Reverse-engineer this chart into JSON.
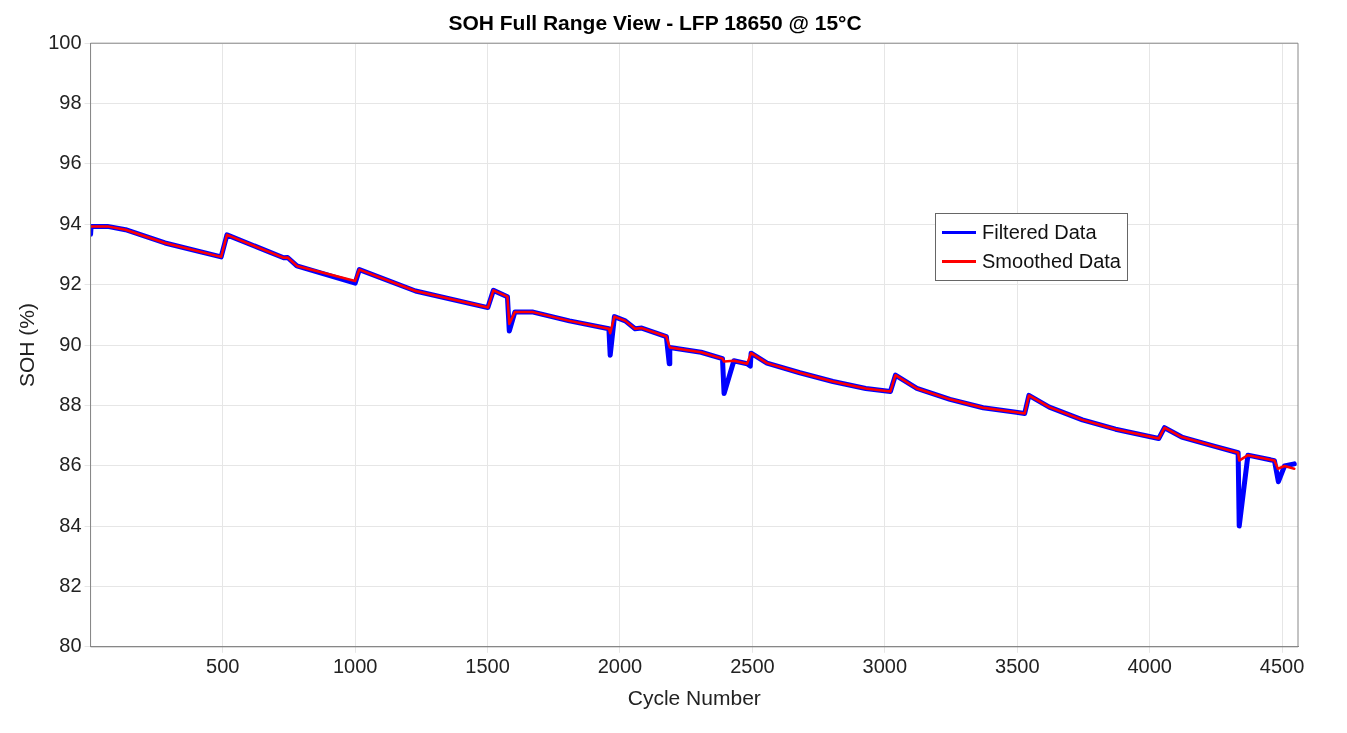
{
  "chart_data": {
    "type": "line",
    "title": "SOH Full Range View - LFP 18650 @ 15°C",
    "xlabel": "Cycle Number",
    "ylabel": "SOH (%)",
    "xlim": [
      1,
      4560
    ],
    "xticks": [
      500,
      1000,
      1500,
      2000,
      2500,
      3000,
      3500,
      4000,
      4500
    ],
    "ylim": [
      80,
      100
    ],
    "yticks": [
      80,
      82,
      84,
      86,
      88,
      90,
      92,
      94,
      96,
      98,
      100
    ],
    "grid": true,
    "legend": "top right",
    "marker": "none",
    "line_style": "solid",
    "series": [
      {
        "name": "Filtered Data",
        "color": "#0000ff",
        "x": [
          1,
          3,
          65,
          133,
          282,
          494,
          516,
          730,
          745,
          780,
          1000,
          1016,
          1228,
          1501,
          1522,
          1575,
          1582,
          1603,
          1672,
          1809,
          1958,
          1963,
          1979,
          2020,
          2057,
          2082,
          2175,
          2186,
          2188,
          2306,
          2387,
          2393,
          2430,
          2480,
          2492,
          2495,
          2555,
          2679,
          2804,
          2928,
          3021,
          3040,
          3121,
          3246,
          3371,
          3528,
          3544,
          3621,
          3746,
          3871,
          4034,
          4056,
          4121,
          4246,
          4334,
          4338,
          4371,
          4471,
          4486,
          4509,
          4546
        ],
        "values": [
          93.67,
          93.93,
          93.93,
          93.82,
          93.38,
          92.92,
          93.65,
          92.89,
          92.9,
          92.62,
          92.05,
          92.5,
          91.79,
          91.24,
          91.81,
          91.6,
          90.46,
          91.09,
          91.09,
          90.8,
          90.54,
          89.66,
          90.94,
          90.8,
          90.54,
          90.56,
          90.28,
          89.38,
          89.92,
          89.76,
          89.55,
          88.39,
          89.48,
          89.38,
          89.3,
          89.73,
          89.4,
          89.08,
          88.79,
          88.56,
          88.46,
          89.0,
          88.56,
          88.2,
          87.92,
          87.73,
          88.33,
          87.94,
          87.52,
          87.21,
          86.9,
          87.26,
          86.95,
          86.64,
          86.43,
          84.0,
          86.35,
          86.17,
          85.47,
          85.99,
          86.06
        ]
      },
      {
        "name": "Smoothed Data",
        "color": "#ff0000",
        "x": [
          1,
          65,
          133,
          282,
          494,
          516,
          730,
          745,
          780,
          1000,
          1016,
          1228,
          1501,
          1522,
          1575,
          1582,
          1603,
          1672,
          1809,
          1958,
          1963,
          1979,
          2020,
          2057,
          2082,
          2175,
          2188,
          2306,
          2387,
          2393,
          2430,
          2480,
          2495,
          2555,
          2679,
          2804,
          2928,
          3021,
          3040,
          3121,
          3246,
          3371,
          3528,
          3544,
          3621,
          3746,
          3871,
          4034,
          4056,
          4121,
          4246,
          4334,
          4338,
          4371,
          4471,
          4484,
          4509,
          4546
        ],
        "values": [
          93.93,
          93.93,
          93.82,
          93.38,
          92.92,
          93.65,
          92.89,
          92.9,
          92.62,
          92.12,
          92.5,
          91.79,
          91.24,
          91.81,
          91.6,
          90.7,
          91.09,
          91.09,
          90.8,
          90.54,
          90.39,
          90.94,
          90.8,
          90.54,
          90.56,
          90.28,
          89.92,
          89.76,
          89.55,
          89.45,
          89.48,
          89.38,
          89.73,
          89.4,
          89.08,
          88.79,
          88.56,
          88.46,
          89.0,
          88.56,
          88.2,
          87.92,
          87.73,
          88.33,
          87.94,
          87.52,
          87.21,
          86.9,
          87.26,
          86.95,
          86.64,
          86.43,
          86.17,
          86.35,
          86.17,
          85.9,
          85.99,
          85.9
        ]
      }
    ]
  }
}
